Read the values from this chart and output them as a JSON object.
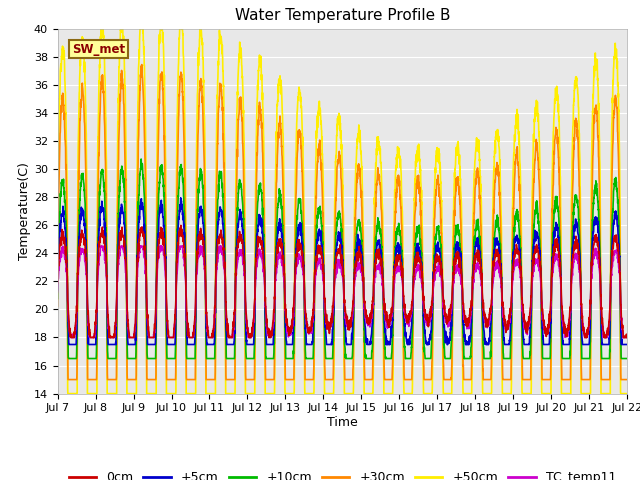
{
  "title": "Water Temperature Profile B",
  "xlabel": "Time",
  "ylabel": "Temperature(C)",
  "annotation": "SW_met",
  "ylim": [
    14,
    40
  ],
  "xlim_days": [
    7,
    22
  ],
  "series": {
    "0cm": {
      "color": "#cc0000",
      "lw": 1.2
    },
    "+5cm": {
      "color": "#0000cc",
      "lw": 1.2
    },
    "+10cm": {
      "color": "#00bb00",
      "lw": 1.2
    },
    "+30cm": {
      "color": "#ff8800",
      "lw": 1.2
    },
    "+50cm": {
      "color": "#ffee00",
      "lw": 1.2
    },
    "TC_temp11": {
      "color": "#cc00cc",
      "lw": 1.2
    }
  },
  "legend_order": [
    "0cm",
    "+5cm",
    "+10cm",
    "+30cm",
    "+50cm",
    "TC_temp11"
  ],
  "title_fontsize": 11,
  "label_fontsize": 9,
  "tick_fontsize": 8,
  "legend_fontsize": 9,
  "yticks": [
    14,
    16,
    18,
    20,
    22,
    24,
    26,
    28,
    30,
    32,
    34,
    36,
    38,
    40
  ]
}
